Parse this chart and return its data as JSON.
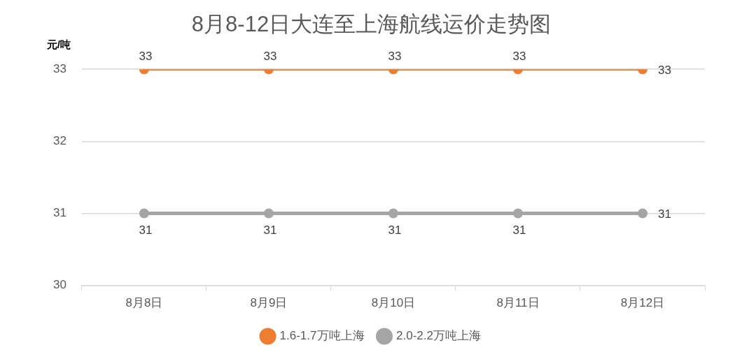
{
  "chart_data": {
    "type": "line",
    "title": "8月8-12日大连至上海航线运价走势图",
    "ylabel": "元/吨",
    "categories": [
      "8月8日",
      "8月9日",
      "8月10日",
      "8月11日",
      "8月12日"
    ],
    "series": [
      {
        "name": "1.6-1.7万吨上海",
        "color": "#ed7d31",
        "values": [
          33,
          33,
          33,
          33,
          33
        ]
      },
      {
        "name": "2.0-2.2万吨上海",
        "color": "#a5a5a5",
        "values": [
          31,
          31,
          31,
          31,
          31
        ]
      }
    ],
    "ylim": [
      30,
      33
    ],
    "yticks": [
      30,
      31,
      32,
      33
    ],
    "grid": "y",
    "legend": "bottom",
    "marker": "circle",
    "line_style": "solid",
    "data_labels": true
  }
}
